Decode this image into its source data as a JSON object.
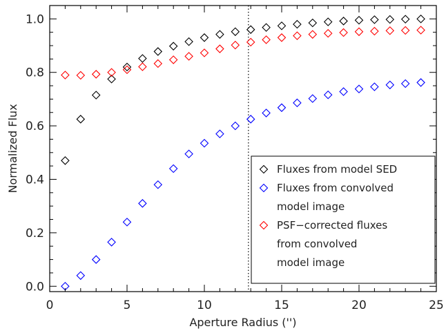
{
  "chart_data": {
    "type": "scatter",
    "xlabel": "Aperture Radius ('')",
    "ylabel": "Normalized Flux",
    "xlim": [
      0,
      25
    ],
    "ylim": [
      -0.02,
      1.05
    ],
    "xticks": [
      0,
      5,
      10,
      15,
      20,
      25
    ],
    "yticks": [
      0.0,
      0.2,
      0.4,
      0.6,
      0.8,
      1.0
    ],
    "ytick_labels": [
      "0.0",
      "0.2",
      "0.4",
      "0.6",
      "0.8",
      "1.0"
    ],
    "grid": false,
    "legend_position": "bottom-right",
    "marker": "diamond",
    "vline": {
      "x": 12.85,
      "style": "dotted",
      "color": "#000000"
    },
    "x": [
      1,
      2,
      3,
      4,
      5,
      6,
      7,
      8,
      9,
      10,
      11,
      12,
      13,
      14,
      15,
      16,
      17,
      18,
      19,
      20,
      21,
      22,
      23,
      24
    ],
    "series": [
      {
        "name": "Fluxes from model SED",
        "legend_lines": [
          "Fluxes from model SED"
        ],
        "color": "#000000",
        "values": [
          0.47,
          0.625,
          0.715,
          0.775,
          0.82,
          0.852,
          0.878,
          0.898,
          0.915,
          0.93,
          0.942,
          0.952,
          0.96,
          0.968,
          0.974,
          0.98,
          0.985,
          0.989,
          0.992,
          0.995,
          0.997,
          0.998,
          0.999,
          1.0
        ]
      },
      {
        "name": "Fluxes from convolved model image",
        "legend_lines": [
          "Fluxes from convolved",
          "model image"
        ],
        "color": "#0000ff",
        "values": [
          0.0,
          0.04,
          0.1,
          0.165,
          0.24,
          0.31,
          0.38,
          0.44,
          0.495,
          0.535,
          0.57,
          0.6,
          0.625,
          0.648,
          0.668,
          0.686,
          0.702,
          0.716,
          0.728,
          0.738,
          0.746,
          0.753,
          0.758,
          0.762
        ]
      },
      {
        "name": "PSF-corrected fluxes from convolved model image",
        "legend_lines": [
          "PSF−corrected fluxes",
          "from convolved",
          "model image"
        ],
        "color": "#ff0000",
        "values": [
          0.79,
          0.789,
          0.793,
          0.8,
          0.81,
          0.821,
          0.833,
          0.847,
          0.86,
          0.873,
          0.888,
          0.902,
          0.913,
          0.922,
          0.93,
          0.937,
          0.942,
          0.946,
          0.949,
          0.952,
          0.954,
          0.956,
          0.957,
          0.958
        ]
      }
    ]
  }
}
